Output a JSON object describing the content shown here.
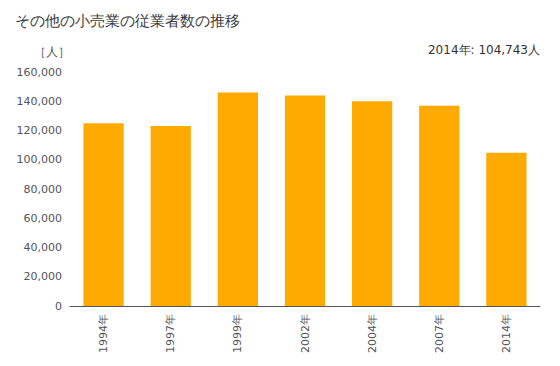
{
  "chart_data": {
    "type": "bar",
    "title": "その他の小売業の従業者数の推移",
    "ylabel": "［人］",
    "annotation": "2014年: 104,743人",
    "categories": [
      "1994年",
      "1997年",
      "1999年",
      "2002年",
      "2004年",
      "2007年",
      "2014年"
    ],
    "values": [
      125000,
      123000,
      146000,
      144000,
      140000,
      137000,
      104743
    ],
    "color": "#FFAA00",
    "ylim": [
      0,
      160000
    ],
    "yticks": [
      0,
      {
        "value": 20000,
        "label": "20,000"
      },
      {
        "value": 40000,
        "label": "40,000"
      },
      {
        "value": 60000,
        "label": "60,000"
      },
      {
        "value": 80000,
        "label": "80,000"
      },
      {
        "value": 100000,
        "label": "100,000"
      },
      {
        "value": 120000,
        "label": "120,000"
      },
      {
        "value": 140000,
        "label": "140,000"
      },
      {
        "value": 160000,
        "label": "160,000"
      }
    ],
    "grid": false
  }
}
